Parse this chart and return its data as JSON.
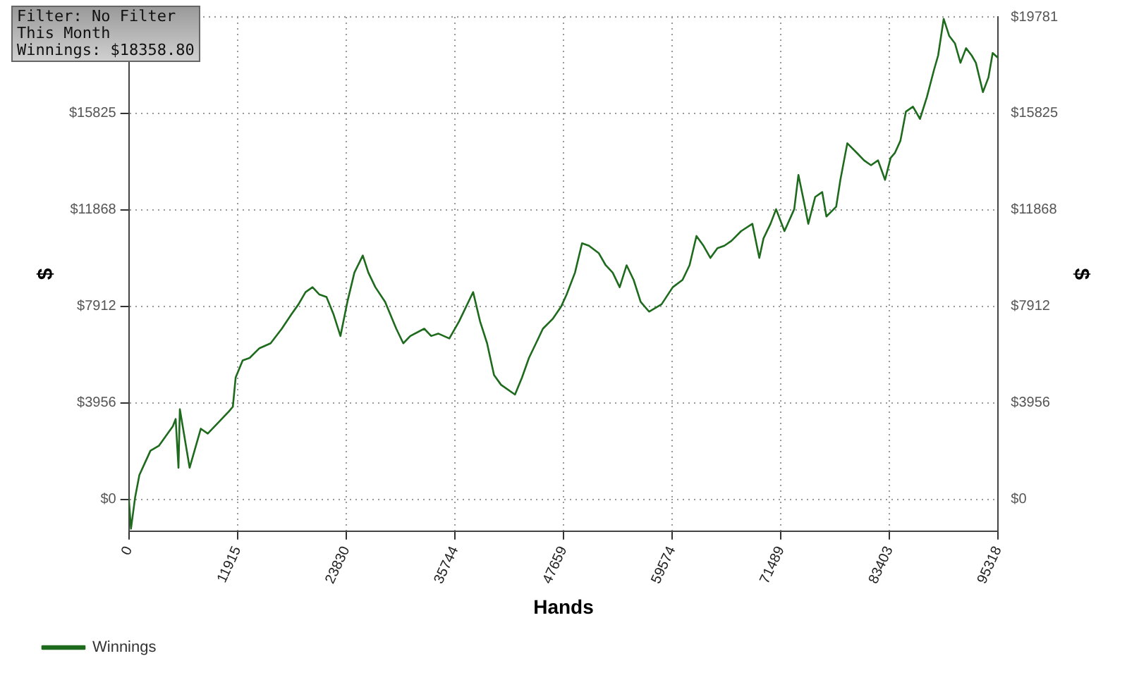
{
  "chart_data": {
    "type": "line",
    "xlabel": "Hands",
    "ylabel": "$",
    "y2label": "$",
    "annotations": [
      "Filter: No Filter",
      "This Month",
      "Winnings: $18358.80"
    ],
    "xlim": [
      0,
      95318
    ],
    "xticks": [
      0,
      11915,
      23830,
      35744,
      47659,
      59574,
      71489,
      83403,
      95318
    ],
    "ylim": [
      -1300,
      19781
    ],
    "yticks": [
      {
        "value": 0,
        "label": "$0"
      },
      {
        "value": 3956,
        "label": "$3956"
      },
      {
        "value": 7912,
        "label": "$7912"
      },
      {
        "value": 11868,
        "label": "$11868"
      },
      {
        "value": 15825,
        "label": "$15825"
      },
      {
        "value": 19781,
        "label": null
      }
    ],
    "y2lim": [
      -1300,
      19781
    ],
    "y2ticks": [
      {
        "value": 0,
        "label": "$0"
      },
      {
        "value": 3956,
        "label": "$3956"
      },
      {
        "value": 7912,
        "label": "$7912"
      },
      {
        "value": 11868,
        "label": "$11868"
      },
      {
        "value": 15825,
        "label": "$15825"
      },
      {
        "value": 19781,
        "label": "$19781"
      }
    ],
    "grid": true,
    "legend": "bottom left",
    "marker": "none",
    "line_style": "solid",
    "series": [
      {
        "name": "Winnings",
        "color": "#1e6b1e",
        "x": [
          0,
          230,
          690,
          1150,
          1760,
          2370,
          3290,
          4060,
          4820,
          5130,
          5440,
          5590,
          6660,
          7890,
          8650,
          10180,
          10950,
          11400,
          11710,
          12480,
          13240,
          14320,
          15540,
          16770,
          17840,
          18600,
          19370,
          20140,
          20900,
          21670,
          22430,
          23200,
          23960,
          24730,
          25650,
          26260,
          27030,
          28100,
          29320,
          30090,
          30860,
          32390,
          33150,
          33920,
          35140,
          36210,
          37750,
          38510,
          39280,
          40040,
          40810,
          42340,
          43110,
          43870,
          44640,
          45400,
          46470,
          47390,
          48000,
          48920,
          49690,
          50450,
          51520,
          52290,
          53050,
          53820,
          54580,
          55350,
          56120,
          57040,
          58410,
          59640,
          60710,
          61480,
          62240,
          63010,
          63770,
          64540,
          65300,
          66070,
          67140,
          68370,
          69130,
          69590,
          70360,
          70970,
          71890,
          72960,
          73420,
          74030,
          74500,
          75260,
          76030,
          76490,
          77560,
          78020,
          78780,
          79850,
          80620,
          81380,
          82150,
          82920,
          83530,
          83990,
          84600,
          85210,
          85980,
          86750,
          87510,
          88280,
          88740,
          89350,
          89960,
          90580,
          91190,
          91800,
          92420,
          92880,
          93650,
          94260,
          94720,
          95318
        ],
        "values": [
          0,
          -1200,
          100,
          1000,
          1500,
          2000,
          2200,
          2600,
          3000,
          3300,
          1300,
          3700,
          1300,
          2900,
          2700,
          3300,
          3600,
          3800,
          5000,
          5700,
          5800,
          6200,
          6400,
          7000,
          7600,
          8000,
          8500,
          8700,
          8400,
          8300,
          7600,
          6700,
          8100,
          9300,
          10000,
          9300,
          8700,
          8100,
          7000,
          6400,
          6700,
          7000,
          6700,
          6800,
          6600,
          7300,
          8500,
          7300,
          6400,
          5100,
          4700,
          4300,
          5000,
          5800,
          6400,
          7000,
          7400,
          7900,
          8400,
          9300,
          10500,
          10400,
          10100,
          9600,
          9300,
          8700,
          9600,
          9000,
          8100,
          7700,
          8000,
          8700,
          9000,
          9600,
          10800,
          10400,
          9900,
          10300,
          10400,
          10600,
          11000,
          11300,
          9900,
          10700,
          11300,
          11900,
          11000,
          11900,
          13300,
          12200,
          11300,
          12400,
          12600,
          11600,
          12000,
          13100,
          14600,
          14200,
          13900,
          13700,
          13900,
          13100,
          14000,
          14200,
          14700,
          15900,
          16100,
          15600,
          16500,
          17600,
          18200,
          19700,
          19000,
          18700,
          17900,
          18500,
          18200,
          17900,
          16700,
          17300,
          18300,
          18100
        ]
      }
    ]
  }
}
